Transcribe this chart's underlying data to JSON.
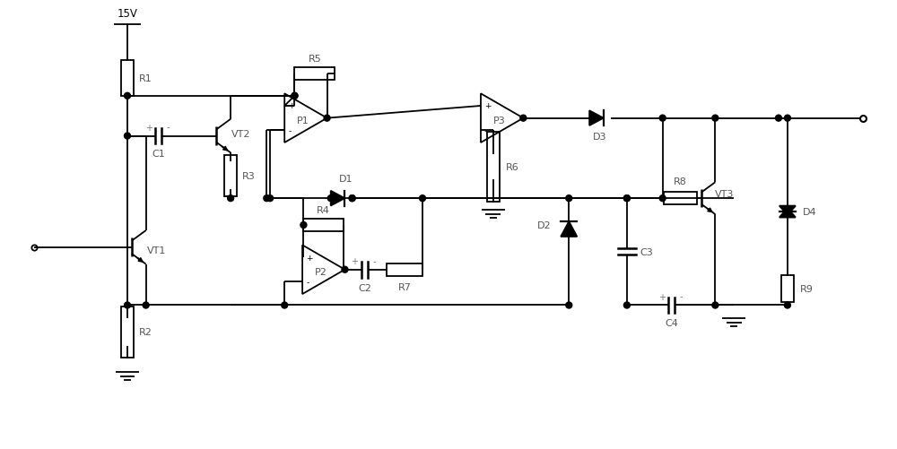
{
  "bg_color": "#ffffff",
  "lw": 1.3,
  "figsize": [
    10.0,
    5.02
  ],
  "dpi": 100,
  "xlim": [
    0,
    100
  ],
  "ylim": [
    0,
    50.2
  ]
}
